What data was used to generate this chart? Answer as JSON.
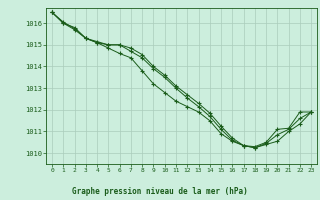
{
  "bg_color": "#cceedd",
  "grid_color": "#aaccbb",
  "line_color": "#1a5c1a",
  "title": "Graphe pression niveau de la mer (hPa)",
  "xlim": [
    -0.5,
    23.5
  ],
  "ylim": [
    1009.5,
    1016.7
  ],
  "yticks": [
    1010,
    1011,
    1012,
    1013,
    1014,
    1015,
    1016
  ],
  "xticks": [
    0,
    1,
    2,
    3,
    4,
    5,
    6,
    7,
    8,
    9,
    10,
    11,
    12,
    13,
    14,
    15,
    16,
    17,
    18,
    19,
    20,
    21,
    22,
    23
  ],
  "series1_x": [
    0,
    1,
    2,
    3,
    4,
    5,
    6,
    7,
    8,
    9,
    10,
    11,
    12,
    13,
    14,
    15,
    16,
    17,
    18,
    19,
    20,
    21,
    22,
    23
  ],
  "series1_y": [
    1016.5,
    1016.0,
    1015.7,
    1015.3,
    1015.15,
    1015.0,
    1015.0,
    1014.7,
    1014.4,
    1013.9,
    1013.5,
    1013.0,
    1012.55,
    1012.15,
    1011.7,
    1011.1,
    1010.6,
    1010.35,
    1010.3,
    1010.5,
    1011.1,
    1011.15,
    1011.9,
    1011.9
  ],
  "series2_x": [
    0,
    1,
    2,
    3,
    4,
    5,
    6,
    7,
    8,
    9,
    10,
    11,
    12,
    13,
    14,
    15,
    16,
    17,
    18,
    19,
    20,
    21,
    22,
    23
  ],
  "series2_y": [
    1016.5,
    1016.0,
    1015.8,
    1015.3,
    1015.1,
    1014.85,
    1014.6,
    1014.4,
    1013.8,
    1013.2,
    1012.8,
    1012.4,
    1012.15,
    1011.9,
    1011.5,
    1010.9,
    1010.55,
    1010.35,
    1010.25,
    1010.4,
    1010.55,
    1011.0,
    1011.35,
    1011.9
  ],
  "series3_x": [
    0,
    1,
    2,
    3,
    4,
    5,
    6,
    7,
    8,
    9,
    10,
    11,
    12,
    13,
    14,
    15,
    16,
    17,
    18,
    19,
    20,
    21,
    22,
    23
  ],
  "series3_y": [
    1016.5,
    1016.05,
    1015.75,
    1015.3,
    1015.1,
    1015.0,
    1015.0,
    1014.85,
    1014.55,
    1014.0,
    1013.6,
    1013.1,
    1012.7,
    1012.3,
    1011.85,
    1011.25,
    1010.7,
    1010.35,
    1010.25,
    1010.45,
    1010.85,
    1011.1,
    1011.6,
    1011.9
  ]
}
